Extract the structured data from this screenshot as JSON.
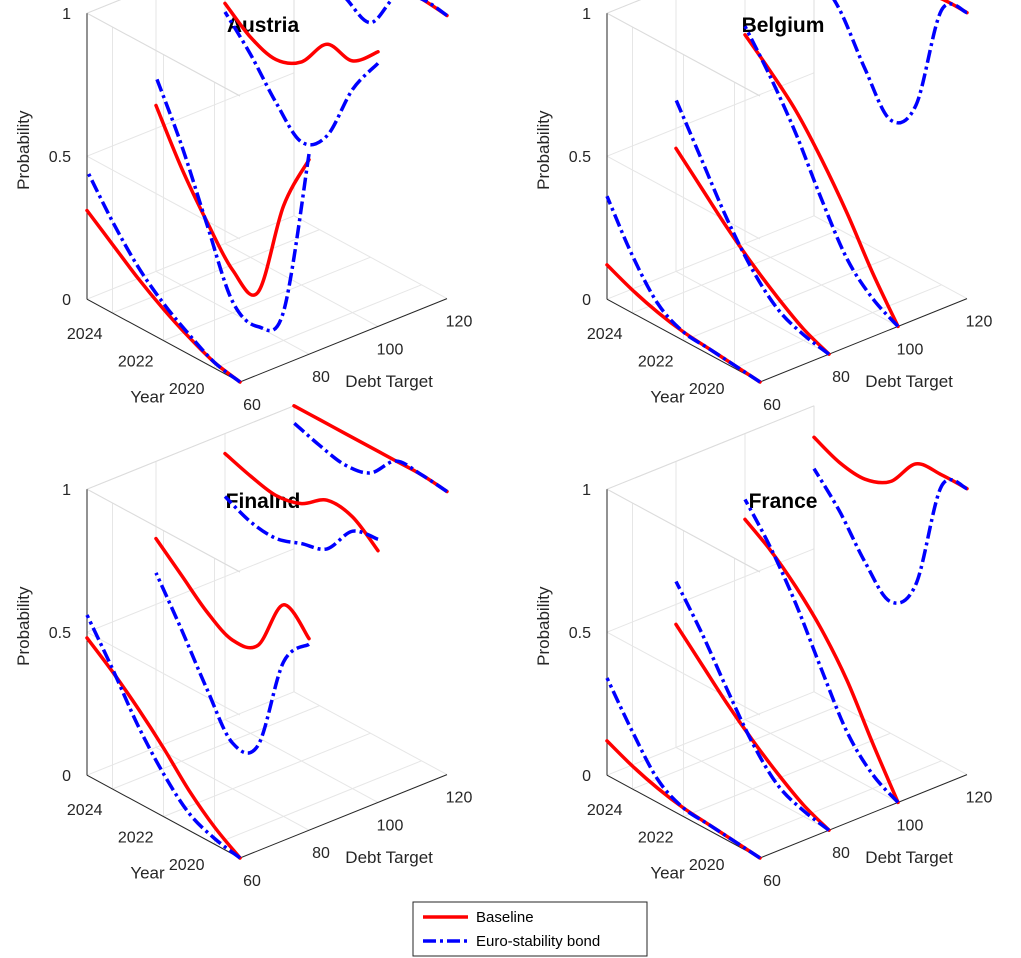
{
  "legend": {
    "items": [
      {
        "label": "Baseline",
        "color": "#ff0000",
        "style": "solid"
      },
      {
        "label": "Euro-stability bond",
        "color": "#0000ff",
        "style": "dashdot"
      }
    ]
  },
  "chart_data": [
    {
      "type": "line",
      "title": "Austria",
      "xlabel": "Debt Target",
      "ylabel": "Year",
      "zlabel": "Probability",
      "xlim": [
        60,
        120
      ],
      "ylim": [
        2019,
        2025
      ],
      "zlim": [
        0,
        1
      ],
      "x_ticks": [
        "60",
        "80",
        "100",
        "120"
      ],
      "y_ticks": [
        "2020",
        "2022",
        "2024"
      ],
      "z_ticks": [
        "0",
        "0.5",
        "1"
      ],
      "grid": true,
      "legend_position": "bottom-center",
      "series": [
        {
          "name": "Baseline",
          "color": "#ff0000",
          "traces": [
            {
              "debt_target": 60,
              "year": [
                2019,
                2020,
                2021,
                2022,
                2023,
                2024,
                2025
              ],
              "probability": [
                0,
                0.02,
                0.06,
                0.11,
                0.17,
                0.24,
                0.31
              ]
            },
            {
              "debt_target": 80,
              "year": [
                2019,
                2020,
                2021,
                2022,
                2023,
                2024,
                2025
              ],
              "probability": [
                0.68,
                0.47,
                0.12,
                0.15,
                0.27,
                0.41,
                0.58
              ]
            },
            {
              "debt_target": 100,
              "year": [
                2019,
                2020,
                2021,
                2022,
                2023,
                2024,
                2025
              ],
              "probability": [
                0.96,
                0.88,
                0.89,
                0.78,
                0.74,
                0.77,
                0.84
              ]
            },
            {
              "debt_target": 120,
              "year": [
                2019,
                2020,
                2021,
                2022,
                2023,
                2024,
                2025
              ],
              "probability": [
                0.99,
                1.0,
                1.0,
                0.98,
                0.99,
                1.0,
                1.0
              ]
            }
          ]
        },
        {
          "name": "Euro-stability bond",
          "color": "#0000ff",
          "traces": [
            {
              "debt_target": 60,
              "year": [
                2019,
                2020,
                2021,
                2022,
                2023,
                2024,
                2025
              ],
              "probability": [
                0,
                0.02,
                0.07,
                0.13,
                0.21,
                0.32,
                0.45
              ]
            },
            {
              "debt_target": 80,
              "year": [
                2019,
                2020,
                2021,
                2022,
                2023,
                2024,
                2025
              ],
              "probability": [
                0.7,
                0.1,
                0,
                0.04,
                0.26,
                0.49,
                0.68
              ]
            },
            {
              "debt_target": 100,
              "year": [
                2019,
                2020,
                2021,
                2022,
                2023,
                2024,
                2025
              ],
              "probability": [
                0.92,
                0.78,
                0.57,
                0.5,
                0.59,
                0.71,
                0.81
              ]
            },
            {
              "debt_target": 120,
              "year": [
                2019,
                2020,
                2021,
                2022,
                2023,
                2024,
                2025
              ],
              "probability": [
                0.99,
                1.0,
                0.96,
                0.82,
                0.86,
                0.9,
                0.94
              ]
            }
          ]
        }
      ]
    },
    {
      "type": "line",
      "title": "Belgium",
      "xlabel": "Debt Target",
      "ylabel": "Year",
      "zlabel": "Probability",
      "xlim": [
        60,
        120
      ],
      "ylim": [
        2019,
        2025
      ],
      "zlim": [
        0,
        1
      ],
      "x_ticks": [
        "60",
        "80",
        "100",
        "120"
      ],
      "y_ticks": [
        "2020",
        "2022",
        "2024"
      ],
      "z_ticks": [
        "0",
        "0.5",
        "1"
      ],
      "grid": true,
      "legend_position": "bottom-center",
      "series": [
        {
          "name": "Baseline",
          "color": "#ff0000",
          "traces": [
            {
              "debt_target": 60,
              "year": [
                2019,
                2020,
                2021,
                2022,
                2023,
                2024,
                2025
              ],
              "probability": [
                0,
                0.01,
                0.02,
                0.03,
                0.05,
                0.08,
                0.12
              ]
            },
            {
              "debt_target": 80,
              "year": [
                2019,
                2020,
                2021,
                2022,
                2023,
                2024,
                2025
              ],
              "probability": [
                0,
                0.04,
                0.1,
                0.17,
                0.25,
                0.34,
                0.43
              ]
            },
            {
              "debt_target": 100,
              "year": [
                2019,
                2020,
                2021,
                2022,
                2023,
                2024,
                2025
              ],
              "probability": [
                0,
                0.14,
                0.3,
                0.44,
                0.56,
                0.65,
                0.73
              ]
            },
            {
              "debt_target": 120,
              "year": [
                2019,
                2020,
                2021,
                2022,
                2023,
                2024,
                2025
              ],
              "probability": [
                1.0,
                1.0,
                0.98,
                0.92,
                0.92,
                0.95,
                0.99
              ]
            }
          ]
        },
        {
          "name": "Euro-stability bond",
          "color": "#0000ff",
          "traces": [
            {
              "debt_target": 60,
              "year": [
                2019,
                2020,
                2021,
                2022,
                2023,
                2024,
                2025
              ],
              "probability": [
                0,
                0.01,
                0.02,
                0.03,
                0.08,
                0.2,
                0.36
              ]
            },
            {
              "debt_target": 80,
              "year": [
                2019,
                2020,
                2021,
                2022,
                2023,
                2024,
                2025
              ],
              "probability": [
                0,
                0.02,
                0.06,
                0.15,
                0.28,
                0.44,
                0.6
              ]
            },
            {
              "debt_target": 100,
              "year": [
                2019,
                2020,
                2021,
                2022,
                2023,
                2024,
                2025
              ],
              "probability": [
                0,
                0.05,
                0.14,
                0.3,
                0.48,
                0.63,
                0.76
              ]
            },
            {
              "debt_target": 120,
              "year": [
                2019,
                2020,
                2021,
                2022,
                2023,
                2024,
                2025
              ],
              "probability": [
                1.0,
                0.96,
                0.58,
                0.48,
                0.61,
                0.77,
                0.86
              ]
            }
          ]
        }
      ]
    },
    {
      "type": "line",
      "title": "Finalnd",
      "xlabel": "Debt Target",
      "ylabel": "Year",
      "zlabel": "Probability",
      "xlim": [
        60,
        120
      ],
      "ylim": [
        2019,
        2025
      ],
      "zlim": [
        0,
        1
      ],
      "x_ticks": [
        "60",
        "80",
        "100",
        "120"
      ],
      "y_ticks": [
        "2020",
        "2022",
        "2024"
      ],
      "z_ticks": [
        "0",
        "0.5",
        "1"
      ],
      "grid": true,
      "legend_position": "bottom-center",
      "series": [
        {
          "name": "Baseline",
          "color": "#ff0000",
          "traces": [
            {
              "debt_target": 60,
              "year": [
                2019,
                2020,
                2021,
                2022,
                2023,
                2024,
                2025
              ],
              "probability": [
                0,
                0.06,
                0.14,
                0.24,
                0.33,
                0.41,
                0.48
              ]
            },
            {
              "debt_target": 80,
              "year": [
                2019,
                2020,
                2021,
                2022,
                2023,
                2024,
                2025
              ],
              "probability": [
                0.67,
                0.74,
                0.55,
                0.52,
                0.57,
                0.65,
                0.73
              ]
            },
            {
              "debt_target": 100,
              "year": [
                2019,
                2020,
                2021,
                2022,
                2023,
                2024,
                2025
              ],
              "probability": [
                0.88,
                0.95,
                0.96,
                0.9,
                0.88,
                0.9,
                0.93
              ]
            },
            {
              "debt_target": 120,
              "year": [
                2019,
                2020,
                2021,
                2022,
                2023,
                2024,
                2025
              ],
              "probability": [
                0.99,
                1.0,
                1.0,
                1.0,
                1.0,
                1.0,
                1.0
              ]
            }
          ]
        },
        {
          "name": "Euro-stability bond",
          "color": "#0000ff",
          "traces": [
            {
              "debt_target": 60,
              "year": [
                2019,
                2020,
                2021,
                2022,
                2023,
                2024,
                2025
              ],
              "probability": [
                0,
                0.02,
                0.06,
                0.15,
                0.27,
                0.42,
                0.56
              ]
            },
            {
              "debt_target": 80,
              "year": [
                2019,
                2020,
                2021,
                2022,
                2023,
                2024,
                2025
              ],
              "probability": [
                0.65,
                0.54,
                0.2,
                0.16,
                0.3,
                0.46,
                0.61
              ]
            },
            {
              "debt_target": 100,
              "year": [
                2019,
                2020,
                2021,
                2022,
                2023,
                2024,
                2025
              ],
              "probability": [
                0.92,
                0.9,
                0.79,
                0.76,
                0.73,
                0.74,
                0.78
              ]
            },
            {
              "debt_target": 120,
              "year": [
                2019,
                2020,
                2021,
                2022,
                2023,
                2024,
                2025
              ],
              "probability": [
                0.99,
                1.0,
                1.0,
                0.91,
                0.89,
                0.91,
                0.94
              ]
            }
          ]
        }
      ]
    },
    {
      "type": "line",
      "title": "France",
      "xlabel": "Debt Target",
      "ylabel": "Year",
      "zlabel": "Probability",
      "xlim": [
        60,
        120
      ],
      "ylim": [
        2019,
        2025
      ],
      "zlim": [
        0,
        1
      ],
      "x_ticks": [
        "60",
        "80",
        "100",
        "120"
      ],
      "y_ticks": [
        "2020",
        "2022",
        "2024"
      ],
      "z_ticks": [
        "0",
        "0.5",
        "1"
      ],
      "grid": true,
      "legend_position": "bottom-center",
      "series": [
        {
          "name": "Baseline",
          "color": "#ff0000",
          "traces": [
            {
              "debt_target": 60,
              "year": [
                2019,
                2020,
                2021,
                2022,
                2023,
                2024,
                2025
              ],
              "probability": [
                0,
                0.01,
                0.02,
                0.03,
                0.05,
                0.08,
                0.12
              ]
            },
            {
              "debt_target": 80,
              "year": [
                2019,
                2020,
                2021,
                2022,
                2023,
                2024,
                2025
              ],
              "probability": [
                0,
                0.04,
                0.1,
                0.17,
                0.25,
                0.34,
                0.43
              ]
            },
            {
              "debt_target": 100,
              "year": [
                2019,
                2020,
                2021,
                2022,
                2023,
                2024,
                2025
              ],
              "probability": [
                0,
                0.16,
                0.33,
                0.46,
                0.56,
                0.64,
                0.7
              ]
            },
            {
              "debt_target": 120,
              "year": [
                2019,
                2020,
                2021,
                2022,
                2023,
                2024,
                2025
              ],
              "probability": [
                1.0,
                1.0,
                0.99,
                0.88,
                0.84,
                0.85,
                0.89
              ]
            }
          ]
        },
        {
          "name": "Euro-stability bond",
          "color": "#0000ff",
          "traces": [
            {
              "debt_target": 60,
              "year": [
                2019,
                2020,
                2021,
                2022,
                2023,
                2024,
                2025
              ],
              "probability": [
                0,
                0.01,
                0.02,
                0.03,
                0.08,
                0.2,
                0.34
              ]
            },
            {
              "debt_target": 80,
              "year": [
                2019,
                2020,
                2021,
                2022,
                2023,
                2024,
                2025
              ],
              "probability": [
                0,
                0.02,
                0.06,
                0.16,
                0.3,
                0.45,
                0.58
              ]
            },
            {
              "debt_target": 100,
              "year": [
                2019,
                2020,
                2021,
                2022,
                2023,
                2024,
                2025
              ],
              "probability": [
                0,
                0.05,
                0.15,
                0.32,
                0.5,
                0.65,
                0.77
              ]
            },
            {
              "debt_target": 120,
              "year": [
                2019,
                2020,
                2021,
                2022,
                2023,
                2024,
                2025
              ],
              "probability": [
                1.0,
                0.96,
                0.57,
                0.46,
                0.55,
                0.68,
                0.78
              ]
            }
          ]
        }
      ]
    }
  ]
}
